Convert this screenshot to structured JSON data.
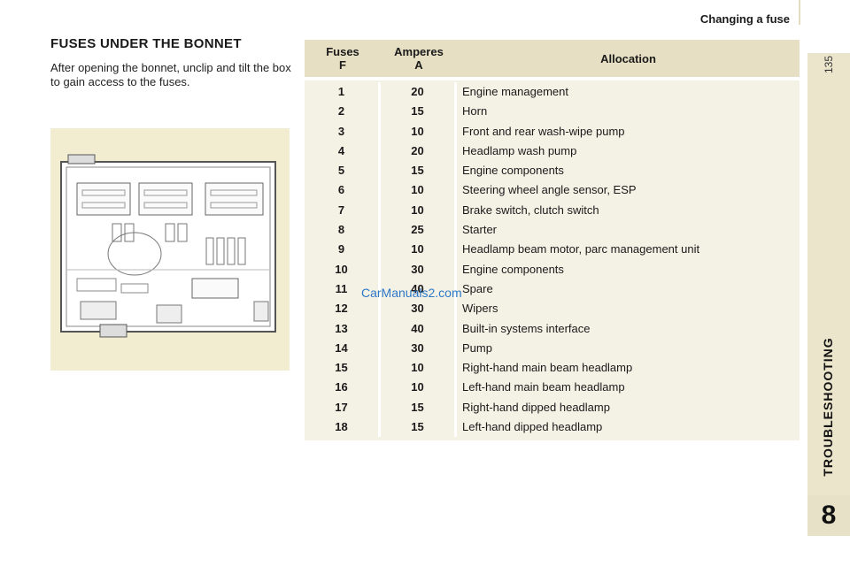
{
  "header": {
    "title": "Changing a fuse"
  },
  "page_number": "135",
  "chapter": {
    "label": "TROUBLESHOOTING",
    "number": "8"
  },
  "section": {
    "title": "FUSES UNDER THE BONNET",
    "intro": "After opening the bonnet, unclip and tilt the box to gain access to the fuses."
  },
  "watermark": "CarManuals2.com",
  "table": {
    "headers": {
      "fuse_line1": "Fuses",
      "fuse_line2": "F",
      "amp_line1": "Amperes",
      "amp_line2": "A",
      "allocation": "Allocation"
    },
    "rows": [
      {
        "fuse": "1",
        "amps": "20",
        "allocation": "Engine management"
      },
      {
        "fuse": "2",
        "amps": "15",
        "allocation": "Horn"
      },
      {
        "fuse": "3",
        "amps": "10",
        "allocation": "Front and rear wash-wipe pump"
      },
      {
        "fuse": "4",
        "amps": "20",
        "allocation": "Headlamp wash pump"
      },
      {
        "fuse": "5",
        "amps": "15",
        "allocation": "Engine components"
      },
      {
        "fuse": "6",
        "amps": "10",
        "allocation": "Steering wheel angle sensor, ESP"
      },
      {
        "fuse": "7",
        "amps": "10",
        "allocation": "Brake switch, clutch switch"
      },
      {
        "fuse": "8",
        "amps": "25",
        "allocation": "Starter"
      },
      {
        "fuse": "9",
        "amps": "10",
        "allocation": "Headlamp beam motor, parc management unit"
      },
      {
        "fuse": "10",
        "amps": "30",
        "allocation": "Engine components"
      },
      {
        "fuse": "11",
        "amps": "40",
        "allocation": "Spare"
      },
      {
        "fuse": "12",
        "amps": "30",
        "allocation": "Wipers"
      },
      {
        "fuse": "13",
        "amps": "40",
        "allocation": "Built-in systems interface"
      },
      {
        "fuse": "14",
        "amps": "30",
        "allocation": "Pump"
      },
      {
        "fuse": "15",
        "amps": "10",
        "allocation": "Right-hand main beam headlamp"
      },
      {
        "fuse": "16",
        "amps": "10",
        "allocation": "Left-hand main beam headlamp"
      },
      {
        "fuse": "17",
        "amps": "15",
        "allocation": "Right-hand dipped headlamp"
      },
      {
        "fuse": "18",
        "amps": "15",
        "allocation": "Left-hand dipped headlamp"
      }
    ]
  }
}
